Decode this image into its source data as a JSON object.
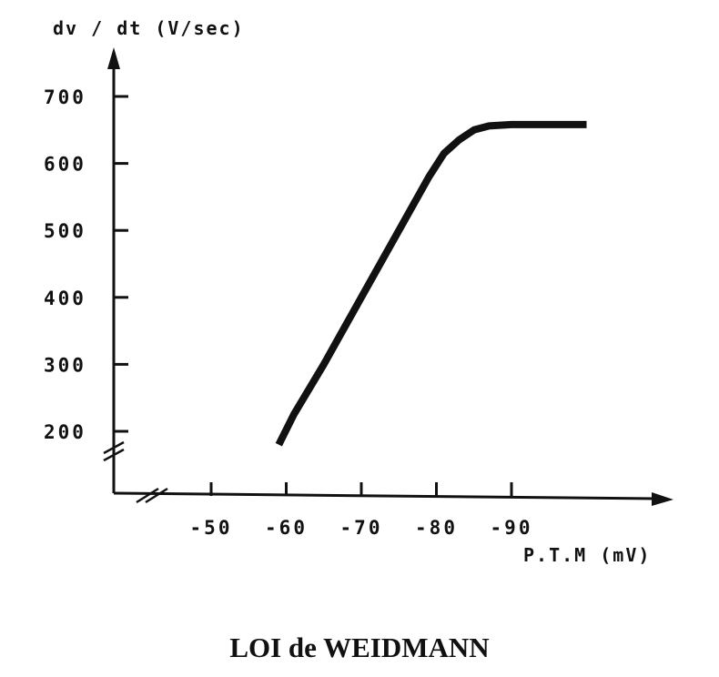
{
  "caption": "LOI de WEIDMANN",
  "chart_data": {
    "type": "line",
    "title": "",
    "ylabel": "dv / dt (V/sec)",
    "xlabel": "P.T.M (mV)",
    "x_ticks": [
      "-50",
      "-60",
      "-70",
      "-80",
      "-90"
    ],
    "x_tick_values": [
      -50,
      -60,
      -70,
      -80,
      -90
    ],
    "y_ticks": [
      "200",
      "300",
      "400",
      "500",
      "600",
      "700"
    ],
    "y_tick_values": [
      200,
      300,
      400,
      500,
      600,
      700
    ],
    "x_axis_break": true,
    "y_axis_break": true,
    "grid": false,
    "legend": "none",
    "series": [
      {
        "x": [
          -59,
          -61,
          -65,
          -70,
          -75,
          -79,
          -81,
          -83,
          -85,
          -87,
          -90,
          -95,
          -100
        ],
        "y": [
          180,
          225,
          300,
          400,
          500,
          580,
          615,
          635,
          650,
          656,
          658,
          658,
          658
        ]
      }
    ]
  }
}
